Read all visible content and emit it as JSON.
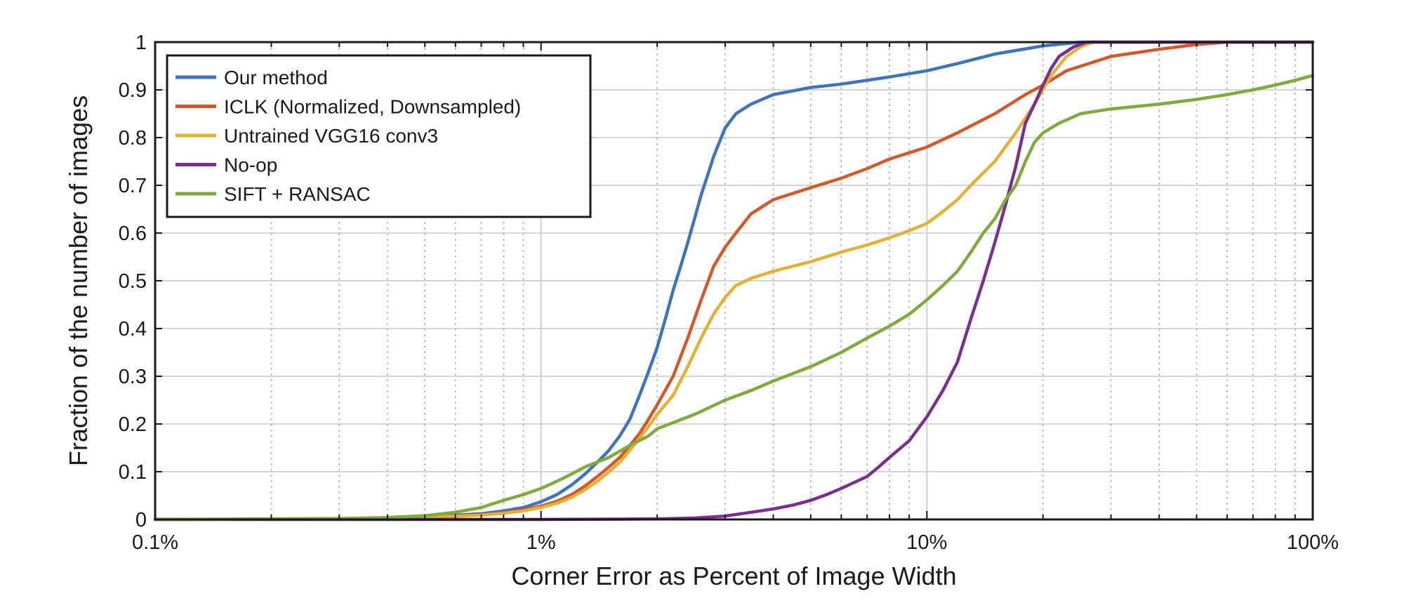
{
  "chart_data": {
    "type": "line",
    "title": "",
    "xlabel": "Corner Error as Percent of Image Width",
    "ylabel": "Fraction of the number of images",
    "x_scale": "log",
    "xlim": [
      0.1,
      100
    ],
    "ylim": [
      0,
      1
    ],
    "x_ticks": [
      0.1,
      1,
      10,
      100
    ],
    "x_tick_labels": [
      "0.1%",
      "1%",
      "10%",
      "100%"
    ],
    "y_ticks": [
      0,
      0.1,
      0.2,
      0.3,
      0.4,
      0.5,
      0.6,
      0.7,
      0.8,
      0.9,
      1
    ],
    "y_tick_labels": [
      "0",
      "0.1",
      "0.2",
      "0.3",
      "0.4",
      "0.5",
      "0.6",
      "0.7",
      "0.8",
      "0.9",
      "1"
    ],
    "grid": true,
    "legend_position": "top-left",
    "series": [
      {
        "name": "Our method",
        "color": "#3c74bd",
        "points": [
          [
            0.1,
            0
          ],
          [
            0.3,
            0.001
          ],
          [
            0.5,
            0.005
          ],
          [
            0.7,
            0.012
          ],
          [
            0.8,
            0.018
          ],
          [
            0.9,
            0.025
          ],
          [
            1.0,
            0.037
          ],
          [
            1.1,
            0.052
          ],
          [
            1.2,
            0.072
          ],
          [
            1.3,
            0.095
          ],
          [
            1.4,
            0.12
          ],
          [
            1.5,
            0.145
          ],
          [
            1.6,
            0.175
          ],
          [
            1.7,
            0.21
          ],
          [
            1.8,
            0.26
          ],
          [
            1.9,
            0.31
          ],
          [
            2.0,
            0.36
          ],
          [
            2.1,
            0.42
          ],
          [
            2.2,
            0.48
          ],
          [
            2.3,
            0.53
          ],
          [
            2.4,
            0.58
          ],
          [
            2.5,
            0.63
          ],
          [
            2.6,
            0.68
          ],
          [
            2.7,
            0.72
          ],
          [
            2.8,
            0.76
          ],
          [
            3.0,
            0.82
          ],
          [
            3.2,
            0.85
          ],
          [
            3.5,
            0.87
          ],
          [
            4.0,
            0.89
          ],
          [
            5.0,
            0.905
          ],
          [
            6.0,
            0.912
          ],
          [
            7.0,
            0.92
          ],
          [
            8.0,
            0.927
          ],
          [
            10.0,
            0.94
          ],
          [
            12.0,
            0.955
          ],
          [
            15.0,
            0.975
          ],
          [
            20.0,
            0.992
          ],
          [
            25.0,
            1.0
          ],
          [
            30.0,
            1.0
          ],
          [
            100.0,
            1.0
          ]
        ]
      },
      {
        "name": "ICLK (Normalized, Downsampled)",
        "color": "#d4582a",
        "points": [
          [
            0.1,
            0
          ],
          [
            0.3,
            0.001
          ],
          [
            0.5,
            0.004
          ],
          [
            0.7,
            0.01
          ],
          [
            0.8,
            0.014
          ],
          [
            0.9,
            0.02
          ],
          [
            1.0,
            0.028
          ],
          [
            1.1,
            0.038
          ],
          [
            1.2,
            0.052
          ],
          [
            1.3,
            0.07
          ],
          [
            1.4,
            0.09
          ],
          [
            1.5,
            0.11
          ],
          [
            1.6,
            0.13
          ],
          [
            1.7,
            0.155
          ],
          [
            1.8,
            0.18
          ],
          [
            1.9,
            0.21
          ],
          [
            2.0,
            0.24
          ],
          [
            2.2,
            0.3
          ],
          [
            2.4,
            0.38
          ],
          [
            2.6,
            0.46
          ],
          [
            2.8,
            0.53
          ],
          [
            3.0,
            0.57
          ],
          [
            3.2,
            0.6
          ],
          [
            3.5,
            0.64
          ],
          [
            4.0,
            0.67
          ],
          [
            5.0,
            0.695
          ],
          [
            6.0,
            0.715
          ],
          [
            7.0,
            0.735
          ],
          [
            8.0,
            0.755
          ],
          [
            10.0,
            0.78
          ],
          [
            12.0,
            0.81
          ],
          [
            15.0,
            0.85
          ],
          [
            18.0,
            0.89
          ],
          [
            20.0,
            0.91
          ],
          [
            23.0,
            0.94
          ],
          [
            30.0,
            0.97
          ],
          [
            40.0,
            0.985
          ],
          [
            50.0,
            0.995
          ],
          [
            60.0,
            1.0
          ],
          [
            100.0,
            1.0
          ]
        ]
      },
      {
        "name": "Untrained VGG16 conv3",
        "color": "#e6b030",
        "points": [
          [
            0.1,
            0
          ],
          [
            0.3,
            0.001
          ],
          [
            0.5,
            0.004
          ],
          [
            0.7,
            0.009
          ],
          [
            0.8,
            0.013
          ],
          [
            0.9,
            0.018
          ],
          [
            1.0,
            0.025
          ],
          [
            1.1,
            0.034
          ],
          [
            1.2,
            0.046
          ],
          [
            1.3,
            0.062
          ],
          [
            1.4,
            0.08
          ],
          [
            1.5,
            0.1
          ],
          [
            1.6,
            0.12
          ],
          [
            1.7,
            0.145
          ],
          [
            1.8,
            0.17
          ],
          [
            1.9,
            0.195
          ],
          [
            2.0,
            0.22
          ],
          [
            2.2,
            0.26
          ],
          [
            2.4,
            0.32
          ],
          [
            2.6,
            0.38
          ],
          [
            2.8,
            0.43
          ],
          [
            3.0,
            0.465
          ],
          [
            3.2,
            0.49
          ],
          [
            3.5,
            0.505
          ],
          [
            4.0,
            0.52
          ],
          [
            5.0,
            0.54
          ],
          [
            6.0,
            0.56
          ],
          [
            7.0,
            0.575
          ],
          [
            8.0,
            0.59
          ],
          [
            9.0,
            0.605
          ],
          [
            10.0,
            0.62
          ],
          [
            11.0,
            0.645
          ],
          [
            12.0,
            0.67
          ],
          [
            13.0,
            0.7
          ],
          [
            15.0,
            0.75
          ],
          [
            17.0,
            0.81
          ],
          [
            19.0,
            0.87
          ],
          [
            21.0,
            0.93
          ],
          [
            23.0,
            0.97
          ],
          [
            25.0,
            0.99
          ],
          [
            27.0,
            1.0
          ],
          [
            100.0,
            1.0
          ]
        ]
      },
      {
        "name": "No-op",
        "color": "#7b2f93",
        "points": [
          [
            0.1,
            0
          ],
          [
            1.0,
            0
          ],
          [
            2.0,
            0.001
          ],
          [
            2.5,
            0.003
          ],
          [
            3.0,
            0.007
          ],
          [
            3.5,
            0.015
          ],
          [
            4.0,
            0.022
          ],
          [
            4.5,
            0.03
          ],
          [
            5.0,
            0.04
          ],
          [
            5.5,
            0.052
          ],
          [
            6.0,
            0.065
          ],
          [
            6.5,
            0.078
          ],
          [
            7.0,
            0.09
          ],
          [
            7.5,
            0.11
          ],
          [
            8.0,
            0.13
          ],
          [
            9.0,
            0.165
          ],
          [
            10.0,
            0.215
          ],
          [
            11.0,
            0.27
          ],
          [
            12.0,
            0.33
          ],
          [
            13.0,
            0.42
          ],
          [
            14.0,
            0.5
          ],
          [
            15.0,
            0.58
          ],
          [
            16.0,
            0.66
          ],
          [
            17.0,
            0.74
          ],
          [
            18.0,
            0.83
          ],
          [
            19.0,
            0.87
          ],
          [
            20.0,
            0.91
          ],
          [
            21.0,
            0.945
          ],
          [
            22.0,
            0.97
          ],
          [
            24.0,
            0.99
          ],
          [
            26.0,
            1.0
          ],
          [
            100.0,
            1.0
          ]
        ]
      },
      {
        "name": "SIFT + RANSAC",
        "color": "#7eab3a",
        "points": [
          [
            0.1,
            0
          ],
          [
            0.3,
            0.002
          ],
          [
            0.4,
            0.004
          ],
          [
            0.5,
            0.008
          ],
          [
            0.6,
            0.015
          ],
          [
            0.7,
            0.025
          ],
          [
            0.8,
            0.04
          ],
          [
            0.9,
            0.052
          ],
          [
            1.0,
            0.065
          ],
          [
            1.1,
            0.08
          ],
          [
            1.2,
            0.095
          ],
          [
            1.3,
            0.11
          ],
          [
            1.5,
            0.13
          ],
          [
            1.7,
            0.155
          ],
          [
            1.9,
            0.175
          ],
          [
            2.0,
            0.19
          ],
          [
            2.5,
            0.22
          ],
          [
            3.0,
            0.25
          ],
          [
            3.5,
            0.27
          ],
          [
            4.0,
            0.29
          ],
          [
            5.0,
            0.32
          ],
          [
            6.0,
            0.35
          ],
          [
            7.0,
            0.38
          ],
          [
            8.0,
            0.405
          ],
          [
            9.0,
            0.43
          ],
          [
            10.0,
            0.46
          ],
          [
            11.0,
            0.49
          ],
          [
            12.0,
            0.52
          ],
          [
            13.0,
            0.56
          ],
          [
            14.0,
            0.6
          ],
          [
            15.0,
            0.63
          ],
          [
            16.0,
            0.67
          ],
          [
            17.0,
            0.7
          ],
          [
            18.0,
            0.75
          ],
          [
            19.0,
            0.79
          ],
          [
            20.0,
            0.81
          ],
          [
            22.0,
            0.83
          ],
          [
            25.0,
            0.85
          ],
          [
            30.0,
            0.86
          ],
          [
            40.0,
            0.87
          ],
          [
            50.0,
            0.88
          ],
          [
            60.0,
            0.89
          ],
          [
            70.0,
            0.9
          ],
          [
            80.0,
            0.91
          ],
          [
            90.0,
            0.92
          ],
          [
            100.0,
            0.93
          ]
        ]
      }
    ]
  }
}
